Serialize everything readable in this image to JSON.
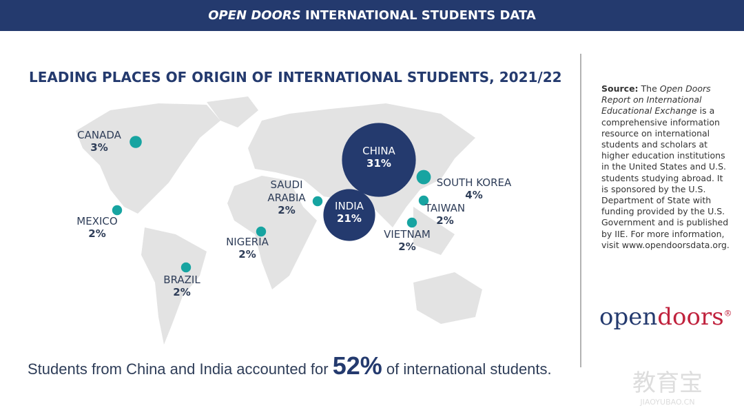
{
  "header": {
    "brand": "OPEN DOORS",
    "title": "INTERNATIONAL STUDENTS DATA"
  },
  "chart_data": {
    "type": "bubble-map",
    "title": "LEADING PLACES OF ORIGIN OF INTERNATIONAL STUDENTS, 2021/22",
    "categories": [
      "CHINA",
      "INDIA",
      "SOUTH KOREA",
      "CANADA",
      "SAUDI ARABIA",
      "TAIWAN",
      "VIETNAM",
      "MEXICO",
      "NIGERIA",
      "BRAZIL"
    ],
    "values": [
      31,
      21,
      4,
      3,
      2,
      2,
      2,
      2,
      2,
      2
    ],
    "value_labels": [
      "31%",
      "21%",
      "4%",
      "3%",
      "2%",
      "2%",
      "2%",
      "2%",
      "2%",
      "2%"
    ],
    "colors": [
      "#243a6e",
      "#243a6e",
      "#17a4a1",
      "#17a4a1",
      "#17a4a1",
      "#17a4a1",
      "#17a4a1",
      "#17a4a1",
      "#17a4a1",
      "#17a4a1"
    ]
  },
  "footer": {
    "before": "Students from China and India accounted for",
    "highlight": "52%",
    "after": "of international students."
  },
  "source": {
    "label": "Source:",
    "pre": "The",
    "italic": "Open Doors Report on International Educational Exchange",
    "text": "is a comprehensive information resource on international students and scholars at higher education institutions in the United States and U.S. students studying abroad. It is sponsored by the U.S. Department of State with funding provided by the U.S. Government and is published by IIE. For more information, visit www.opendoorsdata.org."
  },
  "logo": {
    "open": "open",
    "doors": "doors",
    "mark": "®"
  },
  "watermark": {
    "cn": "教育宝",
    "en": "JIAOYUBAO.CN"
  }
}
